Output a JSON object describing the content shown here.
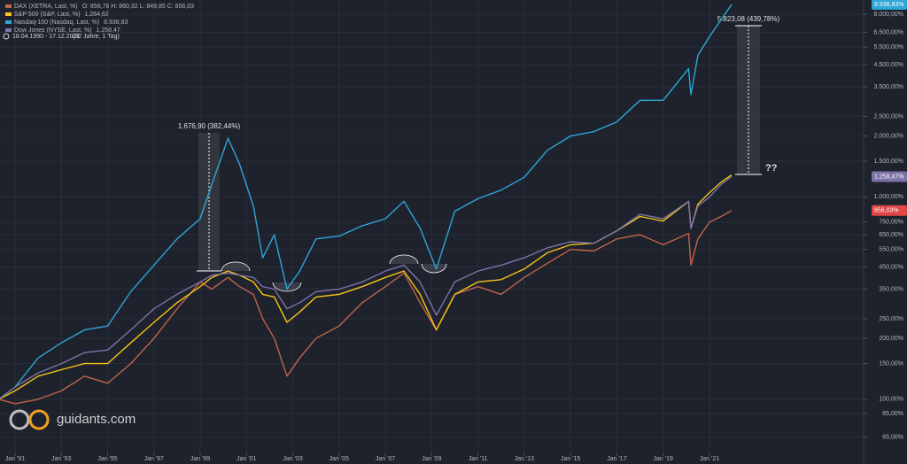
{
  "chart_data": {
    "type": "line",
    "log_scale": true,
    "grid": true,
    "date_range": "18.04.1990 - 17.12.2021",
    "duration": "(32 Jahre, 1 Tag)",
    "watermark": "guidants.com",
    "annotations": [
      "1.676,90 (382,44%)",
      "5.823,08 (439,78%)",
      "??"
    ],
    "x": [
      1990.3,
      1991,
      1992,
      1993,
      1994,
      1995,
      1996,
      1997,
      1998,
      1999,
      1999.5,
      2000.2,
      2000.7,
      2001.3,
      2001.7,
      2002.2,
      2002.75,
      2003.3,
      2004,
      2005,
      2006,
      2007,
      2007.8,
      2008.5,
      2009.2,
      2010,
      2011,
      2012,
      2013,
      2014,
      2015,
      2016,
      2017,
      2018,
      2019,
      2020.1,
      2020.2,
      2020.5,
      2021,
      2021.5,
      2021.96
    ],
    "xlim": [
      1990.35,
      2027.66
    ],
    "xticks": [
      {
        "value": 1991,
        "label": "Jan '91"
      },
      {
        "value": 1993,
        "label": "Jan '93"
      },
      {
        "value": 1995,
        "label": "Jan '95"
      },
      {
        "value": 1997,
        "label": "Jan '97"
      },
      {
        "value": 1999,
        "label": "Jan '99"
      },
      {
        "value": 2001,
        "label": "Jan '01"
      },
      {
        "value": 2003,
        "label": "Jan '03"
      },
      {
        "value": 2005,
        "label": "Jan '05"
      },
      {
        "value": 2007,
        "label": "Jan '07"
      },
      {
        "value": 2009,
        "label": "Jan '09"
      },
      {
        "value": 2011,
        "label": "Jan '11"
      },
      {
        "value": 2013,
        "label": "Jan '13"
      },
      {
        "value": 2015,
        "label": "Jan '15"
      },
      {
        "value": 2017,
        "label": "Jan '17"
      },
      {
        "value": 2019,
        "label": "Jan '19"
      },
      {
        "value": 2021,
        "label": "Jan '21"
      }
    ],
    "ylim": [
      54,
      9400
    ],
    "yticks": [
      {
        "value": 8000,
        "label": "8.000,00%"
      },
      {
        "value": 6500,
        "label": "6.500,00%"
      },
      {
        "value": 5500,
        "label": "5.500,00%"
      },
      {
        "value": 4500,
        "label": "4.500,00%"
      },
      {
        "value": 3500,
        "label": "3.500,00%"
      },
      {
        "value": 2500,
        "label": "2.500,00%"
      },
      {
        "value": 2000,
        "label": "2.000,00%"
      },
      {
        "value": 1500,
        "label": "1.500,00%"
      },
      {
        "value": 1000,
        "label": "1.000,00%"
      },
      {
        "value": 750,
        "label": "750,00%"
      },
      {
        "value": 650,
        "label": "650,00%"
      },
      {
        "value": 550,
        "label": "550,00%"
      },
      {
        "value": 450,
        "label": "450,00%"
      },
      {
        "value": 350,
        "label": "350,00%"
      },
      {
        "value": 250,
        "label": "250,00%"
      },
      {
        "value": 200,
        "label": "200,00%"
      },
      {
        "value": 150,
        "label": "150,00%"
      },
      {
        "value": 100,
        "label": "100,00%"
      },
      {
        "value": 85,
        "label": "85,00%"
      },
      {
        "value": 65,
        "label": "65,00%"
      }
    ],
    "series": [
      {
        "name": "DAX (XETRA, Last, %)",
        "legend_value": "O: 856,76  H: 860,32  L: 849,85  C: 856,03",
        "color": "#c0644a",
        "last_label": "856,03%",
        "label_color": "#e04646",
        "values": [
          100,
          95,
          100,
          110,
          130,
          120,
          150,
          200,
          280,
          380,
          350,
          400,
          360,
          330,
          250,
          200,
          130,
          160,
          200,
          230,
          300,
          360,
          420,
          300,
          220,
          330,
          360,
          330,
          400,
          470,
          550,
          540,
          620,
          650,
          580,
          660,
          460,
          620,
          750,
          800,
          856.03
        ]
      },
      {
        "name": "S&P 500 (S&P, Last, %)",
        "legend_value": "1.284,62",
        "color": "#f5c518",
        "values": [
          100,
          110,
          130,
          140,
          150,
          150,
          190,
          240,
          300,
          360,
          400,
          430,
          410,
          380,
          330,
          320,
          240,
          270,
          320,
          330,
          360,
          400,
          430,
          330,
          220,
          330,
          380,
          390,
          440,
          530,
          580,
          590,
          680,
          800,
          760,
          950,
          700,
          920,
          1050,
          1180,
          1284.62
        ]
      },
      {
        "name": "Nasdaq-100 (Nasdaq, Last, %)",
        "legend_value": "8.938,83",
        "color": "#2ea6d6",
        "last_label": "8.938,83%",
        "label_color": "#2ea6d6",
        "values": [
          100,
          115,
          160,
          190,
          220,
          230,
          340,
          460,
          620,
          780,
          1150,
          1950,
          1450,
          900,
          500,
          650,
          350,
          430,
          620,
          640,
          720,
          780,
          950,
          700,
          440,
          850,
          980,
          1080,
          1250,
          1700,
          2000,
          2100,
          2350,
          3000,
          3000,
          4300,
          3200,
          5000,
          6200,
          7500,
          8938.83
        ]
      },
      {
        "name": "Dow Jones (NYSE, Last, %)",
        "legend_value": "1.258,47",
        "color": "#7d72a8",
        "last_label": "1.258,47%",
        "label_color": "#7d72a8",
        "values": [
          100,
          115,
          135,
          150,
          170,
          175,
          220,
          280,
          330,
          380,
          410,
          420,
          410,
          400,
          360,
          350,
          280,
          300,
          340,
          350,
          380,
          430,
          460,
          380,
          260,
          380,
          430,
          460,
          500,
          560,
          600,
          590,
          680,
          820,
          780,
          950,
          700,
          900,
          1000,
          1150,
          1258.47
        ]
      }
    ]
  }
}
